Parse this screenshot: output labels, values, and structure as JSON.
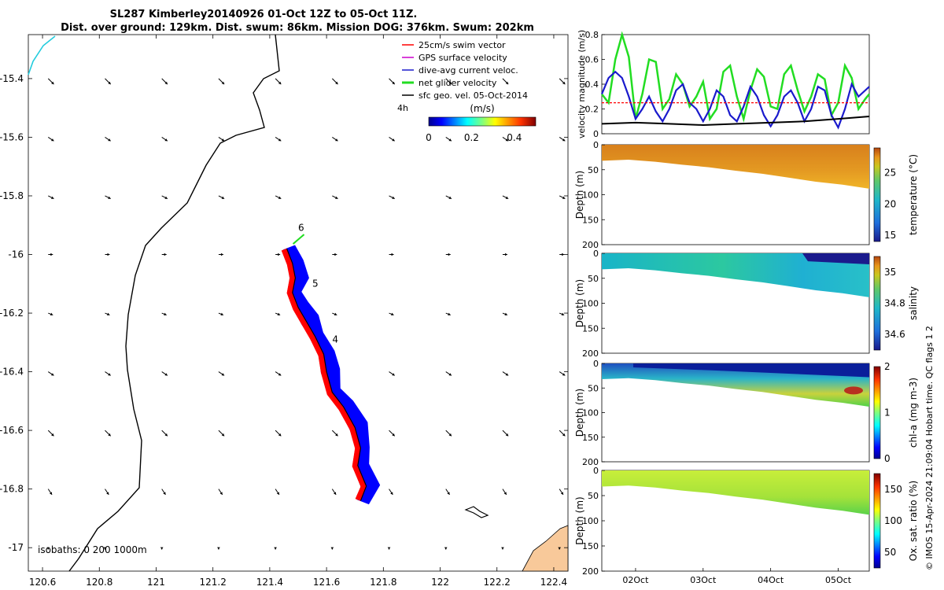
{
  "title": {
    "line1": "SL287 Kimberley20140926 01-Oct 12Z to 05-Oct 11Z.",
    "line2": "Dist. over ground: 129km. Dist. swum: 86km. Mission DOG: 376km. Swum: 202km"
  },
  "side_note": "© IMOS 15-Apr-2024 21:09:04 Hobart time. QC flags 1  2",
  "colors": {
    "track_blue": "#0000ff",
    "track_red": "#ff0000",
    "net_velocity": "#22dd22",
    "dive_avg": "#1a1acc",
    "swim_vector": "#ff0000",
    "gps_surface": "#cc00cc",
    "land": "#f8c99a",
    "coast": "#000000",
    "coast_cyan": "#22ccdd"
  },
  "chart_data": [
    {
      "type": "map",
      "x_ticks": [
        "120.6",
        "120.8",
        "121",
        "121.2",
        "121.4",
        "121.6",
        "121.8",
        "122",
        "122.2",
        "122.4"
      ],
      "x_values": [
        120.6,
        120.8,
        121,
        121.2,
        121.4,
        121.6,
        121.8,
        122,
        122.2,
        122.4
      ],
      "y_ticks": [
        "-15.4",
        "-15.6",
        "-15.8",
        "-16",
        "-16.2",
        "-16.4",
        "-16.6",
        "-16.8",
        "-17"
      ],
      "y_values": [
        -15.4,
        -15.6,
        -15.8,
        -16,
        -16.2,
        -16.4,
        -16.6,
        -16.8,
        -17
      ],
      "xlim": [
        120.55,
        122.45
      ],
      "ylim": [
        -17.08,
        -15.25
      ],
      "legend": {
        "position": "top-right",
        "entries": [
          {
            "label": "25cm/s swim vector",
            "color": "#ff0000"
          },
          {
            "label": "GPS surface velocity",
            "color": "#cc00cc"
          },
          {
            "label": "dive-avg current veloc.",
            "color": "#1a1acc"
          },
          {
            "label": "net glider velocity",
            "color": "#22dd22"
          },
          {
            "label": "sfc geo. vel. 05-Oct-2014",
            "color": "#000000"
          }
        ],
        "note": "4h"
      },
      "colorbar": {
        "label": "(m/s)",
        "ticks": [
          "0",
          "0.2",
          "0.4"
        ],
        "tick_values": [
          0,
          0.2,
          0.4
        ],
        "range": [
          0,
          0.5
        ]
      },
      "day_labels": [
        {
          "text": "6",
          "lon": 121.5,
          "lat": -15.92
        },
        {
          "text": "5",
          "lon": 121.55,
          "lat": -16.11
        },
        {
          "text": "4",
          "lon": 121.62,
          "lat": -16.3
        }
      ],
      "isobath_label": "isobaths: 0   200  1000m",
      "track_path": [
        [
          121.46,
          -15.98
        ],
        [
          121.48,
          -16.03
        ],
        [
          121.49,
          -16.08
        ],
        [
          121.48,
          -16.13
        ],
        [
          121.5,
          -16.18
        ],
        [
          121.53,
          -16.23
        ],
        [
          121.56,
          -16.28
        ],
        [
          121.59,
          -16.34
        ],
        [
          121.6,
          -16.4
        ],
        [
          121.62,
          -16.47
        ],
        [
          121.66,
          -16.52
        ],
        [
          121.7,
          -16.59
        ],
        [
          121.72,
          -16.66
        ],
        [
          121.71,
          -16.72
        ],
        [
          121.74,
          -16.79
        ],
        [
          121.72,
          -16.84
        ]
      ],
      "geo_vectors": {
        "lons": [
          120.62,
          120.82,
          121.02,
          121.22,
          121.42,
          121.62,
          121.82,
          122.02,
          122.22,
          122.42
        ],
        "lats": [
          -15.4,
          -15.6,
          -15.8,
          -16,
          -16.2,
          -16.4,
          -16.6,
          -16.8,
          -17
        ],
        "row_components": [
          [
            0.03,
            -0.03
          ],
          [
            0.03,
            -0.02
          ],
          [
            0.03,
            -0.015
          ],
          [
            0.025,
            0.0
          ],
          [
            0.025,
            -0.01
          ],
          [
            0.03,
            -0.02
          ],
          [
            0.03,
            -0.03
          ],
          [
            0.02,
            -0.03
          ],
          [
            0.0,
            -0.01
          ]
        ]
      }
    },
    {
      "type": "line",
      "ylabel": "velocity magnitude (m/s)",
      "ylim": [
        0,
        0.8
      ],
      "y_ticks": [
        "0",
        "0.2",
        "0.4",
        "0.6",
        "0.8"
      ],
      "y_values": [
        0,
        0.2,
        0.4,
        0.6,
        0.8
      ],
      "x_range_days": [
        1.5,
        5.46
      ],
      "series": [
        {
          "color": "#22dd22",
          "x": [
            1.5,
            1.6,
            1.7,
            1.8,
            1.9,
            2.0,
            2.1,
            2.2,
            2.3,
            2.4,
            2.5,
            2.6,
            2.7,
            2.8,
            2.9,
            3.0,
            3.1,
            3.2,
            3.3,
            3.4,
            3.5,
            3.6,
            3.7,
            3.8,
            3.9,
            4.0,
            4.1,
            4.2,
            4.3,
            4.4,
            4.5,
            4.6,
            4.7,
            4.8,
            4.9,
            5.0,
            5.1,
            5.2,
            5.3,
            5.4,
            5.46
          ],
          "y": [
            0.32,
            0.25,
            0.6,
            0.8,
            0.62,
            0.12,
            0.32,
            0.6,
            0.58,
            0.2,
            0.28,
            0.48,
            0.4,
            0.22,
            0.3,
            0.42,
            0.12,
            0.2,
            0.5,
            0.55,
            0.3,
            0.12,
            0.35,
            0.52,
            0.46,
            0.22,
            0.2,
            0.48,
            0.55,
            0.35,
            0.18,
            0.3,
            0.48,
            0.44,
            0.15,
            0.25,
            0.55,
            0.45,
            0.2,
            0.28,
            0.32
          ]
        },
        {
          "color": "#1a1acc",
          "x": [
            1.5,
            1.6,
            1.7,
            1.8,
            1.9,
            2.0,
            2.1,
            2.2,
            2.3,
            2.4,
            2.5,
            2.6,
            2.7,
            2.8,
            2.9,
            3.0,
            3.1,
            3.2,
            3.3,
            3.4,
            3.5,
            3.6,
            3.7,
            3.8,
            3.9,
            4.0,
            4.1,
            4.2,
            4.3,
            4.4,
            4.5,
            4.6,
            4.7,
            4.8,
            4.9,
            5.0,
            5.1,
            5.2,
            5.3,
            5.4,
            5.46
          ],
          "y": [
            0.32,
            0.45,
            0.5,
            0.45,
            0.3,
            0.12,
            0.2,
            0.3,
            0.18,
            0.1,
            0.2,
            0.35,
            0.4,
            0.25,
            0.2,
            0.1,
            0.2,
            0.35,
            0.3,
            0.15,
            0.1,
            0.22,
            0.38,
            0.3,
            0.15,
            0.06,
            0.15,
            0.3,
            0.35,
            0.25,
            0.1,
            0.2,
            0.38,
            0.35,
            0.15,
            0.05,
            0.2,
            0.4,
            0.3,
            0.35,
            0.38
          ]
        },
        {
          "color": "#ff0000",
          "x": [
            1.5,
            5.46
          ],
          "y": [
            0.25,
            0.25
          ]
        },
        {
          "color": "#000000",
          "x": [
            1.5,
            2.0,
            2.5,
            3.0,
            3.5,
            4.0,
            4.5,
            5.0,
            5.46
          ],
          "y": [
            0.08,
            0.09,
            0.08,
            0.07,
            0.08,
            0.09,
            0.1,
            0.12,
            0.14
          ]
        }
      ]
    },
    {
      "type": "heatmap",
      "ylabel": "Depth (m)",
      "colorbar_label": "temperature (°C)",
      "colorbar_ticks": [
        "15",
        "20",
        "25"
      ],
      "colorbar_values": [
        15,
        20,
        25
      ],
      "clim": [
        14,
        29
      ],
      "y_ticks": [
        "0",
        "50",
        "100",
        "150",
        "200"
      ],
      "y_values": [
        0,
        50,
        100,
        150,
        200
      ]
    },
    {
      "type": "heatmap",
      "ylabel": "Depth (m)",
      "colorbar_label": "salinity",
      "colorbar_ticks": [
        "34.6",
        "34.8",
        "35"
      ],
      "colorbar_values": [
        34.6,
        34.8,
        35
      ],
      "clim": [
        34.5,
        35.1
      ],
      "y_ticks": [
        "0",
        "50",
        "100",
        "150",
        "200"
      ],
      "y_values": [
        0,
        50,
        100,
        150,
        200
      ]
    },
    {
      "type": "heatmap",
      "ylabel": "Depth (m)",
      "colorbar_label": "chl-a (mg m-3)",
      "colorbar_ticks": [
        "0",
        "1",
        "2"
      ],
      "colorbar_values": [
        0,
        1,
        2
      ],
      "clim": [
        0,
        2
      ],
      "y_ticks": [
        "0",
        "50",
        "100",
        "150",
        "200"
      ],
      "y_values": [
        0,
        50,
        100,
        150,
        200
      ]
    },
    {
      "type": "heatmap",
      "ylabel": "Depth (m)",
      "colorbar_label": "Ox. sat. ratio (%)",
      "colorbar_ticks": [
        "50",
        "100",
        "150"
      ],
      "colorbar_values": [
        50,
        100,
        150
      ],
      "clim": [
        25,
        175
      ],
      "y_ticks": [
        "0",
        "50",
        "100",
        "150",
        "200"
      ],
      "y_values": [
        0,
        50,
        100,
        150,
        200
      ],
      "x_ticks": [
        "02Oct",
        "03Oct",
        "04Oct",
        "05Oct"
      ],
      "x_values": [
        2,
        3,
        4,
        5
      ]
    }
  ]
}
